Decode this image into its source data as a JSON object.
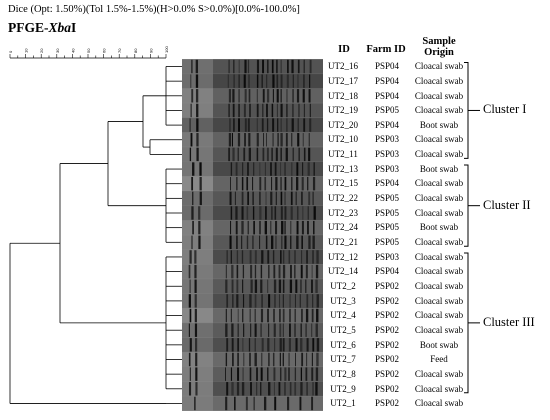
{
  "header_line": "Dice (Opt: 1.50%)(Tol 1.5%-1.5%)(H>0.0% S>0.0%)[0.0%-100.0%]",
  "header_title": "PFGE-",
  "header_title_italic": "Xba",
  "header_title_suffix": "I",
  "columns": {
    "id": "ID",
    "farm": "Farm ID",
    "sample_line1": "Sample",
    "sample_line2": "Origin"
  },
  "scale_labels": [
    "0",
    "10",
    "20",
    "30",
    "40",
    "50",
    "60",
    "70",
    "80",
    "90",
    "100"
  ],
  "rows": [
    {
      "id": "UT2_16",
      "farm": "PSP04",
      "sample": "Cloacal swab"
    },
    {
      "id": "UT2_17",
      "farm": "PSP04",
      "sample": "Cloacal swab"
    },
    {
      "id": "UT2_18",
      "farm": "PSP04",
      "sample": "Cloacal swab"
    },
    {
      "id": "UT2_19",
      "farm": "PSP05",
      "sample": "Cloacal swab"
    },
    {
      "id": "UT2_20",
      "farm": "PSP04",
      "sample": "Boot swab"
    },
    {
      "id": "UT2_10",
      "farm": "PSP03",
      "sample": "Cloacal swab"
    },
    {
      "id": "UT2_11",
      "farm": "PSP03",
      "sample": "Cloacal swab"
    },
    {
      "id": "UT2_13",
      "farm": "PSP03",
      "sample": "Boot swab"
    },
    {
      "id": "UT2_15",
      "farm": "PSP04",
      "sample": "Cloacal swab"
    },
    {
      "id": "UT2_22",
      "farm": "PSP05",
      "sample": "Cloacal swab"
    },
    {
      "id": "UT2_23",
      "farm": "PSP05",
      "sample": "Cloacal swab"
    },
    {
      "id": "UT2_24",
      "farm": "PSP05",
      "sample": "Boot swab"
    },
    {
      "id": "UT2_21",
      "farm": "PSP05",
      "sample": "Cloacal swab"
    },
    {
      "id": "UT2_12",
      "farm": "PSP03",
      "sample": "Cloacal swab"
    },
    {
      "id": "UT2_14",
      "farm": "PSP04",
      "sample": "Cloacal swab"
    },
    {
      "id": "UT2_2",
      "farm": "PSP02",
      "sample": "Cloacal swab"
    },
    {
      "id": "UT2_3",
      "farm": "PSP02",
      "sample": "Cloacal swab"
    },
    {
      "id": "UT2_4",
      "farm": "PSP02",
      "sample": "Cloacal swab"
    },
    {
      "id": "UT2_5",
      "farm": "PSP02",
      "sample": "Cloacal swab"
    },
    {
      "id": "UT2_6",
      "farm": "PSP02",
      "sample": "Boot swab"
    },
    {
      "id": "UT2_7",
      "farm": "PSP02",
      "sample": "Feed"
    },
    {
      "id": "UT2_8",
      "farm": "PSP02",
      "sample": "Cloacal swab"
    },
    {
      "id": "UT2_9",
      "farm": "PSP02",
      "sample": "Cloacal swab"
    },
    {
      "id": "UT2_1",
      "farm": "PSP02",
      "sample": "Cloacal swab"
    }
  ],
  "clusters": [
    {
      "label": "Cluster I",
      "first_row": 0,
      "last_row": 6
    },
    {
      "label": "Cluster II",
      "first_row": 7,
      "last_row": 12
    },
    {
      "label": "Cluster III",
      "first_row": 13,
      "last_row": 22
    }
  ]
}
